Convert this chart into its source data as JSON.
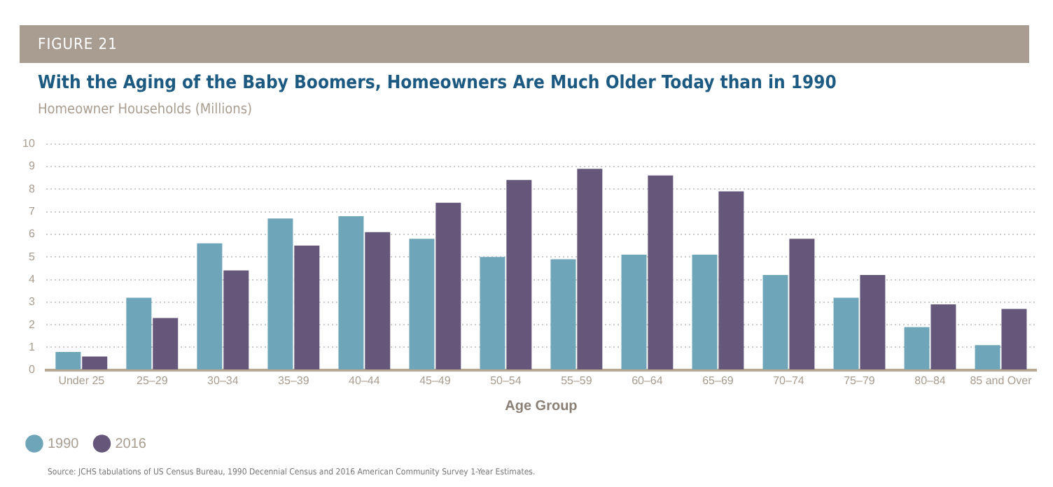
{
  "chart_data": {
    "type": "bar",
    "title": "With the Aging of the Baby Boomers, Homeowners Are Much Older Today than in 1990",
    "subtitle": "Homeowner Households (Millions)",
    "xlabel": "Age Group",
    "categories": [
      "Under 25",
      "25–29",
      "30–34",
      "35–39",
      "40–44",
      "45–49",
      "50–54",
      "55–59",
      "60–64",
      "65–69",
      "70–74",
      "75–79",
      "80–84",
      "85 and Over"
    ],
    "series": [
      {
        "name": "1990",
        "color": "#6fa5b8",
        "values": [
          0.8,
          3.2,
          5.6,
          6.7,
          6.8,
          5.8,
          5.0,
          4.9,
          5.1,
          5.1,
          4.2,
          3.2,
          1.9,
          1.1
        ]
      },
      {
        "name": "2016",
        "color": "#65577a",
        "values": [
          0.6,
          2.3,
          4.4,
          5.5,
          6.1,
          7.4,
          8.4,
          8.9,
          8.6,
          7.9,
          5.8,
          4.2,
          2.9,
          2.7
        ]
      }
    ],
    "ylim": [
      0,
      10
    ],
    "yticks": [
      0,
      1,
      2,
      3,
      4,
      5,
      6,
      7,
      8,
      9,
      10
    ],
    "grid": "y",
    "legend": "bottom left",
    "annotations": [
      "FIGURE 21",
      "Source: JCHS tabulations of US Census Bureau, 1990 Decennial Census and 2016 American Community Survey 1-Year Estimates."
    ]
  }
}
